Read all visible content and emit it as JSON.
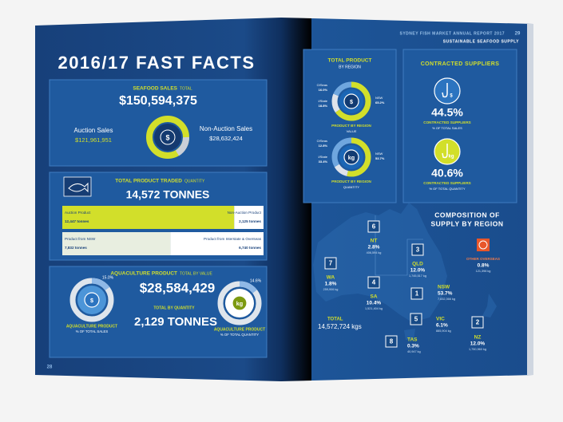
{
  "left_page": {
    "title": "2016/17 FAST FACTS",
    "seafood_sales": {
      "heading": "SEAFOOD SALES",
      "qualifier": "TOTAL",
      "total": "$150,594,375",
      "auction_label": "Auction Sales",
      "auction_value": "$121,961,951",
      "non_auction_label": "Non-Auction Sales",
      "non_auction_value": "$28,632,424",
      "icon": "$"
    },
    "product_traded": {
      "heading": "TOTAL PRODUCT TRADED",
      "qualifier": "QUANTITY",
      "total": "14,572 TONNES",
      "bars": [
        {
          "left_label": "Auction Product",
          "left": {
            "value": 12447,
            "label": "12,447 tonnes"
          },
          "right_label": "Non-Auction Product",
          "right": {
            "value": 2125,
            "label": "2,125 tonnes"
          }
        },
        {
          "left_label": "Product from NSW",
          "left": {
            "value": 7832,
            "label": "7,832 tonnes"
          },
          "right_label": "Product from Interstate & Overseas",
          "right": {
            "value": 6740,
            "label": "6,740 tonnes"
          }
        }
      ]
    },
    "aquaculture": {
      "heading": "AQUACULTURE PRODUCT",
      "qualifier": "TOTAL BY VALUE",
      "value": "$28,584,429",
      "quantity_label": "TOTAL BY QUANTITY",
      "quantity": "2,129 TONNES",
      "donuts": [
        {
          "share": {
            "value": 15.0,
            "label": "15.0%"
          },
          "icon": "$",
          "title": "AQUACULTURE PRODUCT",
          "caption": "% OF TOTAL SALES"
        },
        {
          "share": {
            "value": 14.6,
            "label": "14.6%"
          },
          "icon": "kg",
          "title": "AQUACULTURE PRODUCT",
          "caption": "% OF TOTAL QUANTITY"
        }
      ]
    },
    "page_number": "28"
  },
  "right_page": {
    "header": {
      "report": "SYDNEY FISH MARKET ANNUAL REPORT 2017",
      "page_number": "29",
      "section": "SUSTAINABLE SEAFOOD SUPPLY"
    },
    "region_product": {
      "heading": "TOTAL PRODUCT",
      "subheading": "BY REGION",
      "donuts": [
        {
          "icon": "$",
          "title": "PRODUCT BY REGION",
          "caption": "VALUE",
          "segments": [
            {
              "name": "NSW",
              "share": {
                "value": 65.2,
                "label": "65.2%"
              }
            },
            {
              "name": "O/Seas",
              "share": {
                "value": 16.0,
                "label": "16.0%"
              }
            },
            {
              "name": "I/State",
              "share": {
                "value": 18.8,
                "label": "18.8%"
              }
            }
          ]
        },
        {
          "icon": "kg",
          "title": "PRODUCT BY REGION",
          "caption": "QUANTITY",
          "segments": [
            {
              "name": "NSW",
              "share": {
                "value": 53.7,
                "label": "53.7%"
              }
            },
            {
              "name": "O/Seas",
              "share": {
                "value": 12.8,
                "label": "12.8%"
              }
            },
            {
              "name": "I/State",
              "share": {
                "value": 33.4,
                "label": "33.4%"
              }
            }
          ]
        }
      ]
    },
    "contracted_suppliers": {
      "heading": "CONTRACTED SUPPLIERS",
      "items": [
        {
          "icon": "$",
          "share": "44.5%",
          "title": "CONTRACTED SUPPLIERS",
          "caption": "% OF TOTAL SALES"
        },
        {
          "icon": "kg",
          "share": "40.6%",
          "title": "CONTRACTED SUPPLIERS",
          "caption": "% OF TOTAL QUANTITY"
        }
      ]
    },
    "composition": {
      "heading_line1": "COMPOSITION OF",
      "heading_line2": "SUPPLY BY REGION",
      "total_label": "TOTAL",
      "total_value": "14,572,724 kgs",
      "regions": [
        {
          "rank": "6",
          "name": "NT",
          "share": "2.8%",
          "weight": "406,594 kg"
        },
        {
          "rank": "3",
          "name": "QLD",
          "share": "12.0%",
          "weight": "1,745,517 kg"
        },
        {
          "rank": "7",
          "name": "WA",
          "share": "1.8%",
          "weight": "259,906 kg"
        },
        {
          "rank": "4",
          "name": "SA",
          "share": "10.4%",
          "weight": "1,521,404 kg"
        },
        {
          "rank": "1",
          "name": "NSW",
          "share": "53.7%",
          "weight": "7,832,366 kg"
        },
        {
          "rank": "5",
          "name": "VIC",
          "share": "6.1%",
          "weight": "885,904 kg"
        },
        {
          "rank": "8",
          "name": "TAS",
          "share": "0.3%",
          "weight": "40,947 kg"
        },
        {
          "rank": "2",
          "name": "NZ",
          "share": "12.0%",
          "weight": "1,750,960 kg"
        },
        {
          "rank": null,
          "name": "OTHER OVERSEAS",
          "share": "0.8%",
          "weight": "121,398 kg"
        }
      ]
    }
  }
}
